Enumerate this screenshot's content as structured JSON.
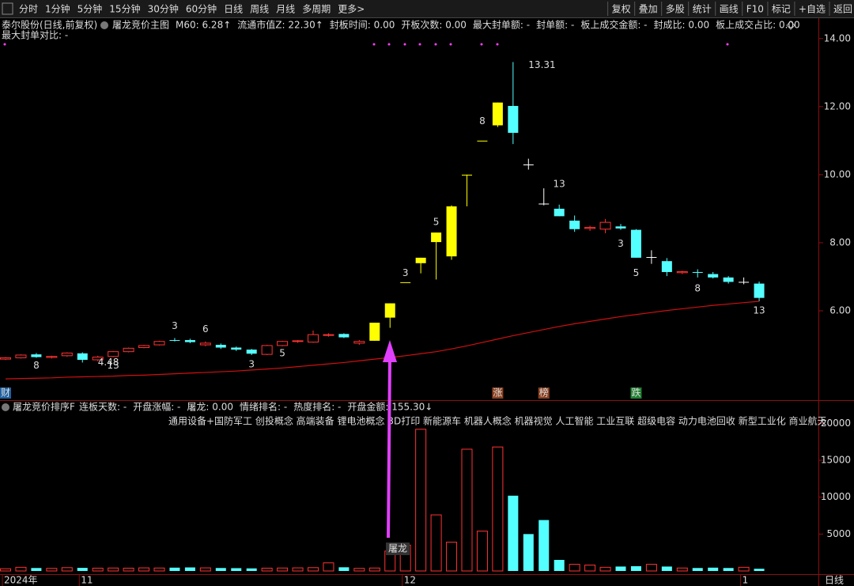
{
  "toolbar": {
    "left": [
      "分时",
      "1分钟",
      "5分钟",
      "15分钟",
      "30分钟",
      "60分钟",
      "日线",
      "周线",
      "月线",
      "多周期",
      "更多>"
    ],
    "right": [
      "复权",
      "叠加",
      "多股",
      "统计",
      "画线",
      "F10",
      "标记",
      "+自选",
      "返回"
    ]
  },
  "info": {
    "stock": "泰尔股份(日线,前复权)",
    "indicator": "屠龙竞价主图",
    "fields": [
      {
        "text": "M60: 6.28↑",
        "color": "#ff3232"
      },
      {
        "text": "流通市值Z: 22.30↑",
        "color": "#00e000"
      },
      {
        "text": "封板时间: 0.00",
        "color": "#00e000"
      },
      {
        "text": "开板次数: 0.00",
        "color": "#00e000"
      },
      {
        "text": "最大封单额: -",
        "color": "#ffff00"
      },
      {
        "text": "封单额: -",
        "color": "#ffff00"
      },
      {
        "text": "板上成交金额: -",
        "color": "#ffff00"
      },
      {
        "text": "封成比: 0.00",
        "color": "#ffff00"
      },
      {
        "text": "板上成交占比: 0.00",
        "color": "#ff40ff"
      }
    ],
    "line2": "最大封单对比: -"
  },
  "chart_data": [
    {
      "type": "candlestick",
      "categories": [
        "2024年",
        null,
        null,
        null,
        null,
        "11",
        null,
        null,
        null,
        null,
        null,
        null,
        null,
        null,
        null,
        null,
        null,
        null,
        null,
        null,
        null,
        null,
        null,
        null,
        null,
        null,
        "12",
        null,
        null,
        null,
        null,
        null,
        null,
        null,
        null,
        null,
        null,
        null,
        null,
        null,
        null,
        null,
        null,
        null,
        null,
        null,
        null,
        null,
        "1",
        null
      ],
      "open": [
        4.58,
        4.62,
        4.72,
        4.63,
        4.68,
        4.75,
        4.56,
        4.66,
        4.8,
        4.92,
        5.0,
        5.14,
        5.14,
        5.05,
        5.0,
        4.92,
        4.86,
        4.72,
        4.98,
        5.1,
        5.08,
        5.28,
        5.32,
        5.1,
        5.12,
        5.8,
        6.84,
        7.4,
        8.02,
        7.6,
        10.0,
        11.0,
        11.45,
        12.02,
        10.3,
        9.15,
        9.0,
        8.65,
        8.42,
        8.4,
        8.48,
        8.38,
        7.58,
        7.46,
        7.12,
        7.14,
        7.08,
        6.98,
        6.85,
        6.8
      ],
      "high": [
        4.64,
        4.72,
        4.76,
        4.68,
        4.78,
        4.78,
        4.68,
        4.82,
        4.92,
        5.0,
        5.12,
        5.2,
        5.18,
        5.1,
        5.04,
        4.95,
        4.88,
        5.0,
        5.12,
        5.14,
        5.42,
        5.34,
        5.34,
        5.14,
        5.65,
        6.22,
        6.84,
        7.56,
        8.3,
        9.1,
        10.0,
        11.0,
        12.12,
        13.31,
        10.47,
        9.6,
        9.12,
        8.8,
        8.5,
        8.7,
        8.55,
        8.4,
        7.78,
        7.55,
        7.18,
        7.22,
        7.14,
        7.02,
        6.98,
        6.86
      ],
      "low": [
        4.55,
        4.6,
        4.62,
        4.6,
        4.65,
        4.48,
        4.52,
        4.64,
        4.78,
        4.9,
        4.98,
        5.1,
        5.05,
        4.96,
        4.88,
        4.82,
        4.7,
        4.7,
        4.96,
        5.06,
        5.06,
        5.24,
        5.2,
        5.0,
        5.12,
        5.5,
        6.84,
        7.1,
        6.92,
        7.5,
        9.07,
        11.0,
        11.4,
        10.9,
        10.15,
        9.1,
        8.78,
        8.32,
        8.35,
        8.28,
        8.38,
        7.56,
        7.38,
        7.02,
        7.08,
        6.98,
        6.95,
        6.8,
        6.78,
        6.28
      ],
      "close": [
        4.62,
        4.7,
        4.64,
        4.66,
        4.76,
        4.56,
        4.64,
        4.8,
        4.9,
        4.98,
        5.1,
        5.12,
        5.08,
        5.0,
        4.92,
        4.86,
        4.74,
        4.98,
        5.1,
        5.12,
        5.3,
        5.3,
        5.22,
        5.05,
        5.65,
        6.22,
        6.84,
        7.56,
        8.3,
        9.07,
        10.0,
        11.0,
        12.12,
        11.23,
        10.3,
        9.15,
        8.78,
        8.4,
        8.45,
        8.6,
        8.42,
        7.56,
        7.58,
        7.14,
        7.15,
        7.12,
        6.98,
        6.85,
        6.85,
        6.38
      ],
      "colors": [
        "#ff3232",
        "#ff3232",
        "#54ffff",
        "#ff3232",
        "#ff3232",
        "#54ffff",
        "#ff3232",
        "#ff3232",
        "#ff3232",
        "#ff3232",
        "#ff3232",
        "#54ffff",
        "#54ffff",
        "#ff3232",
        "#54ffff",
        "#54ffff",
        "#54ffff",
        "#ff3232",
        "#ff3232",
        "#ff3232",
        "#ff3232",
        "#ff3232",
        "#54ffff",
        "#ff3232",
        "#ffff00",
        "#ffff00",
        "#ffff00",
        "#ffff00",
        "#ffff00",
        "#ffff00",
        "#ffff00",
        "#ffff00",
        "#ffff00",
        "#54ffff",
        "#ffffff",
        "#ffffff",
        "#54ffff",
        "#54ffff",
        "#ff3232",
        "#ff3232",
        "#54ffff",
        "#54ffff",
        "#ffffff",
        "#54ffff",
        "#ff3232",
        "#54ffff",
        "#54ffff",
        "#54ffff",
        "#ffffff",
        "#54ffff"
      ],
      "ma_color": "#d01010",
      "ma_values": [
        4.0,
        4.01,
        4.02,
        4.03,
        4.05,
        4.06,
        4.07,
        4.08,
        4.1,
        4.11,
        4.13,
        4.15,
        4.17,
        4.19,
        4.21,
        4.23,
        4.26,
        4.29,
        4.32,
        4.36,
        4.4,
        4.44,
        4.48,
        4.53,
        4.58,
        4.63,
        4.68,
        4.74,
        4.8,
        4.88,
        4.97,
        5.07,
        5.17,
        5.27,
        5.36,
        5.45,
        5.54,
        5.62,
        5.69,
        5.76,
        5.83,
        5.89,
        5.95,
        6.01,
        6.06,
        6.11,
        6.16,
        6.2,
        6.24,
        6.28
      ],
      "ylim": [
        3.7,
        14.25
      ],
      "yticks": [
        {
          "value": 6,
          "label": "6.00"
        },
        {
          "value": 8,
          "label": "8.00"
        },
        {
          "value": 10,
          "label": "10.00"
        },
        {
          "value": 12,
          "label": "12.00"
        },
        {
          "value": 14,
          "label": "14.00"
        }
      ],
      "annotations": [
        {
          "text": "8",
          "index": 2,
          "y": 4.38,
          "color": "#00e000"
        },
        {
          "text": "4.48",
          "index": 6,
          "y": 4.48,
          "color": "#dddddd"
        },
        {
          "text": "13",
          "index": 7,
          "y": 4.38,
          "color": "#00e000"
        },
        {
          "text": "3",
          "index": 11,
          "y": 5.55,
          "color": "#ff3232"
        },
        {
          "text": "6",
          "index": 13,
          "y": 5.45,
          "color": "#ff3232"
        },
        {
          "text": "3",
          "index": 16,
          "y": 4.42,
          "color": "#00e000"
        },
        {
          "text": "5",
          "index": 18,
          "y": 4.75,
          "color": "#00e000"
        },
        {
          "text": "3",
          "index": 26,
          "y": 7.1,
          "color": "#ff3232"
        },
        {
          "text": "5",
          "index": 28,
          "y": 8.6,
          "color": "#ff3232"
        },
        {
          "text": "8",
          "index": 31,
          "y": 11.57,
          "color": "#ff3232"
        },
        {
          "text": "13.31",
          "index": 34,
          "y": 13.22,
          "color": "#dddddd"
        },
        {
          "text": "13",
          "index": 36,
          "y": 9.72,
          "color": "#ff3232"
        },
        {
          "text": "3",
          "index": 40,
          "y": 7.96,
          "color": "#00e000"
        },
        {
          "text": "5",
          "index": 41,
          "y": 7.1,
          "color": "#00e000"
        },
        {
          "text": "8",
          "index": 45,
          "y": 6.65,
          "color": "#00e000"
        },
        {
          "text": "13",
          "index": 49,
          "y": 6.0,
          "color": "#00e000"
        }
      ],
      "markers": [
        {
          "text": "财",
          "index": 0,
          "color": "#2060a0"
        },
        {
          "text": "涨",
          "index": 32,
          "color": "#8a4020"
        },
        {
          "text": "榜",
          "index": 35,
          "color": "#8a4020"
        },
        {
          "text": "跌",
          "index": 41,
          "color": "#208030"
        }
      ]
    },
    {
      "type": "bar",
      "title": "屠龙竞价排序F",
      "fields": [
        {
          "text": "连板天数: -",
          "color": "#ff3232"
        },
        {
          "text": "开盘涨幅: -",
          "color": "#ff3232"
        },
        {
          "text": "屠龙: 0.00",
          "color": "#ff40ff"
        },
        {
          "text": "情绪排名: -",
          "color": "#00e000"
        },
        {
          "text": "热度排名: -",
          "color": "#00e000"
        },
        {
          "text": "开盘金额: 155.30↓",
          "color": "#ffff60"
        }
      ],
      "concepts": "通用设备+国防军工 创投概念 高端装备 锂电池概念 3D打印 新能源车 机器人概念 机器视觉 人工智能 工业互联 超级电容 动力电池回收 新型工业化 商业航天",
      "arrow_label": "屠龙",
      "values": [
        300,
        500,
        400,
        350,
        450,
        420,
        380,
        400,
        380,
        420,
        400,
        450,
        480,
        420,
        400,
        380,
        350,
        380,
        400,
        420,
        450,
        1100,
        500,
        350,
        400,
        2700,
        3500,
        19200,
        7600,
        3900,
        16500,
        5400,
        16800,
        10200,
        5000,
        6900,
        1500,
        900,
        800,
        500,
        600,
        650,
        900,
        600,
        400,
        400,
        450,
        400,
        500,
        300
      ],
      "colors": [
        "#ff3232",
        "#ff3232",
        "#54ffff",
        "#ff3232",
        "#ff3232",
        "#54ffff",
        "#ff3232",
        "#ff3232",
        "#ff3232",
        "#ff3232",
        "#ff3232",
        "#54ffff",
        "#54ffff",
        "#ff3232",
        "#54ffff",
        "#54ffff",
        "#54ffff",
        "#ff3232",
        "#ff3232",
        "#ff3232",
        "#ff3232",
        "#ff3232",
        "#54ffff",
        "#ff3232",
        "#ff3232",
        "#ff3232",
        "#ff3232",
        "#ff3232",
        "#ff3232",
        "#ff3232",
        "#ff3232",
        "#ff3232",
        "#ff3232",
        "#54ffff",
        "#54ffff",
        "#54ffff",
        "#54ffff",
        "#ff3232",
        "#ff3232",
        "#ff3232",
        "#54ffff",
        "#54ffff",
        "#ff3232",
        "#54ffff",
        "#ff3232",
        "#54ffff",
        "#54ffff",
        "#54ffff",
        "#ff3232",
        "#54ffff"
      ],
      "ylim": [
        0,
        21000
      ],
      "yticks": [
        5000,
        10000,
        15000,
        20000
      ]
    }
  ],
  "period_label": "日线"
}
